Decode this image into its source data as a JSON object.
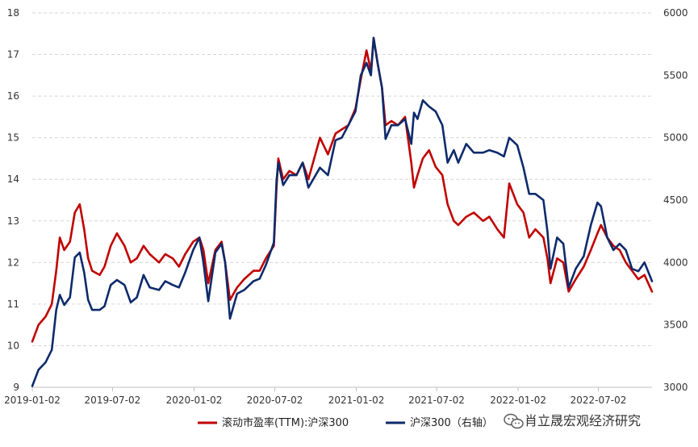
{
  "chart_data": {
    "type": "line",
    "title": "",
    "xlabel": "",
    "ylabel": "",
    "x_ticks": [
      "2019-01-02",
      "2019-07-02",
      "2020-01-02",
      "2020-07-02",
      "2021-01-02",
      "2021-07-02",
      "2022-01-02",
      "2022-07-02"
    ],
    "x_range": [
      "2019-01-02",
      "2022-10-31"
    ],
    "ylim_left": [
      9,
      18
    ],
    "left_ticks": [
      "9",
      "10",
      "11",
      "12",
      "13",
      "14",
      "15",
      "16",
      "17",
      "18"
    ],
    "ylim_right": [
      3000,
      6000
    ],
    "right_ticks": [
      "3000",
      "3500",
      "4000",
      "4500",
      "5000",
      "5500",
      "6000"
    ],
    "grid": "horizontal dashed",
    "legend_position": "bottom",
    "series": [
      {
        "name": "滚动市盈率(TTM):沪深300",
        "axis": "left",
        "color": "#c00000",
        "points": [
          [
            "2019-01-02",
            10.1
          ],
          [
            "2019-01-16",
            10.5
          ],
          [
            "2019-02-01",
            10.7
          ],
          [
            "2019-02-15",
            11.0
          ],
          [
            "2019-02-25",
            11.8
          ],
          [
            "2019-03-05",
            12.6
          ],
          [
            "2019-03-15",
            12.3
          ],
          [
            "2019-03-28",
            12.5
          ],
          [
            "2019-04-08",
            13.2
          ],
          [
            "2019-04-19",
            13.4
          ],
          [
            "2019-04-29",
            12.8
          ],
          [
            "2019-05-08",
            12.1
          ],
          [
            "2019-05-17",
            11.8
          ],
          [
            "2019-06-03",
            11.7
          ],
          [
            "2019-06-14",
            11.9
          ],
          [
            "2019-06-28",
            12.4
          ],
          [
            "2019-07-12",
            12.7
          ],
          [
            "2019-07-29",
            12.4
          ],
          [
            "2019-08-12",
            12.0
          ],
          [
            "2019-08-26",
            12.1
          ],
          [
            "2019-09-10",
            12.4
          ],
          [
            "2019-09-24",
            12.2
          ],
          [
            "2019-10-15",
            12.0
          ],
          [
            "2019-10-29",
            12.2
          ],
          [
            "2019-11-15",
            12.1
          ],
          [
            "2019-11-29",
            11.9
          ],
          [
            "2019-12-13",
            12.2
          ],
          [
            "2019-12-31",
            12.5
          ],
          [
            "2020-01-14",
            12.6
          ],
          [
            "2020-01-23",
            12.3
          ],
          [
            "2020-02-03",
            11.5
          ],
          [
            "2020-02-19",
            12.3
          ],
          [
            "2020-03-04",
            12.5
          ],
          [
            "2020-03-12",
            12.0
          ],
          [
            "2020-03-23",
            11.1
          ],
          [
            "2020-04-08",
            11.4
          ],
          [
            "2020-04-24",
            11.6
          ],
          [
            "2020-05-15",
            11.8
          ],
          [
            "2020-05-29",
            11.8
          ],
          [
            "2020-06-12",
            12.1
          ],
          [
            "2020-06-30",
            12.4
          ],
          [
            "2020-07-06",
            13.8
          ],
          [
            "2020-07-10",
            14.5
          ],
          [
            "2020-07-21",
            14.0
          ],
          [
            "2020-08-04",
            14.2
          ],
          [
            "2020-08-20",
            14.1
          ],
          [
            "2020-09-03",
            14.4
          ],
          [
            "2020-09-16",
            14.0
          ],
          [
            "2020-10-12",
            15.0
          ],
          [
            "2020-10-30",
            14.6
          ],
          [
            "2020-11-16",
            15.1
          ],
          [
            "2020-11-30",
            15.2
          ],
          [
            "2020-12-15",
            15.3
          ],
          [
            "2020-12-31",
            15.7
          ],
          [
            "2021-01-12",
            16.4
          ],
          [
            "2021-01-25",
            17.1
          ],
          [
            "2021-02-04",
            16.6
          ],
          [
            "2021-02-10",
            17.4
          ],
          [
            "2021-02-19",
            16.8
          ],
          [
            "2021-03-01",
            16.2
          ],
          [
            "2021-03-09",
            15.3
          ],
          [
            "2021-03-22",
            15.4
          ],
          [
            "2021-04-06",
            15.3
          ],
          [
            "2021-04-22",
            15.5
          ],
          [
            "2021-05-06",
            14.4
          ],
          [
            "2021-05-12",
            13.8
          ],
          [
            "2021-05-20",
            14.1
          ],
          [
            "2021-06-01",
            14.5
          ],
          [
            "2021-06-15",
            14.7
          ],
          [
            "2021-06-30",
            14.3
          ],
          [
            "2021-07-15",
            14.1
          ],
          [
            "2021-07-27",
            13.4
          ],
          [
            "2021-08-10",
            13.0
          ],
          [
            "2021-08-20",
            12.9
          ],
          [
            "2021-09-07",
            13.1
          ],
          [
            "2021-09-24",
            13.2
          ],
          [
            "2021-10-15",
            13.0
          ],
          [
            "2021-10-29",
            13.1
          ],
          [
            "2021-11-16",
            12.8
          ],
          [
            "2021-12-01",
            12.6
          ],
          [
            "2021-12-13",
            13.9
          ],
          [
            "2021-12-31",
            13.4
          ],
          [
            "2022-01-14",
            13.2
          ],
          [
            "2022-01-27",
            12.6
          ],
          [
            "2022-02-10",
            12.8
          ],
          [
            "2022-02-28",
            12.6
          ],
          [
            "2022-03-09",
            12.1
          ],
          [
            "2022-03-16",
            11.5
          ],
          [
            "2022-03-31",
            12.1
          ],
          [
            "2022-04-14",
            12.0
          ],
          [
            "2022-04-26",
            11.3
          ],
          [
            "2022-05-12",
            11.6
          ],
          [
            "2022-05-30",
            11.9
          ],
          [
            "2022-06-15",
            12.3
          ],
          [
            "2022-06-30",
            12.7
          ],
          [
            "2022-07-08",
            12.9
          ],
          [
            "2022-07-22",
            12.6
          ],
          [
            "2022-08-05",
            12.4
          ],
          [
            "2022-08-19",
            12.3
          ],
          [
            "2022-09-02",
            12.0
          ],
          [
            "2022-09-16",
            11.8
          ],
          [
            "2022-09-30",
            11.6
          ],
          [
            "2022-10-14",
            11.7
          ],
          [
            "2022-10-31",
            11.3
          ]
        ]
      },
      {
        "name": "沪深300（右轴）",
        "axis": "right",
        "color": "#0d2a6b",
        "points": [
          [
            "2019-01-02",
            3010
          ],
          [
            "2019-01-16",
            3140
          ],
          [
            "2019-02-01",
            3200
          ],
          [
            "2019-02-15",
            3300
          ],
          [
            "2019-02-25",
            3620
          ],
          [
            "2019-03-05",
            3740
          ],
          [
            "2019-03-15",
            3660
          ],
          [
            "2019-03-28",
            3720
          ],
          [
            "2019-04-08",
            4040
          ],
          [
            "2019-04-19",
            4080
          ],
          [
            "2019-04-29",
            3920
          ],
          [
            "2019-05-08",
            3700
          ],
          [
            "2019-05-17",
            3620
          ],
          [
            "2019-06-03",
            3620
          ],
          [
            "2019-06-14",
            3650
          ],
          [
            "2019-06-28",
            3820
          ],
          [
            "2019-07-12",
            3860
          ],
          [
            "2019-07-29",
            3820
          ],
          [
            "2019-08-12",
            3680
          ],
          [
            "2019-08-26",
            3720
          ],
          [
            "2019-09-10",
            3900
          ],
          [
            "2019-09-24",
            3800
          ],
          [
            "2019-10-15",
            3780
          ],
          [
            "2019-10-29",
            3850
          ],
          [
            "2019-11-15",
            3820
          ],
          [
            "2019-11-29",
            3800
          ],
          [
            "2019-12-13",
            3920
          ],
          [
            "2019-12-31",
            4100
          ],
          [
            "2020-01-14",
            4200
          ],
          [
            "2020-01-23",
            4000
          ],
          [
            "2020-02-03",
            3690
          ],
          [
            "2020-02-19",
            4080
          ],
          [
            "2020-03-04",
            4150
          ],
          [
            "2020-03-12",
            4000
          ],
          [
            "2020-03-23",
            3550
          ],
          [
            "2020-04-08",
            3750
          ],
          [
            "2020-04-24",
            3780
          ],
          [
            "2020-05-15",
            3850
          ],
          [
            "2020-05-29",
            3870
          ],
          [
            "2020-06-12",
            3980
          ],
          [
            "2020-06-30",
            4160
          ],
          [
            "2020-07-06",
            4660
          ],
          [
            "2020-07-10",
            4800
          ],
          [
            "2020-07-21",
            4620
          ],
          [
            "2020-08-04",
            4700
          ],
          [
            "2020-08-20",
            4700
          ],
          [
            "2020-09-03",
            4800
          ],
          [
            "2020-09-16",
            4600
          ],
          [
            "2020-10-12",
            4760
          ],
          [
            "2020-10-30",
            4700
          ],
          [
            "2020-11-16",
            4980
          ],
          [
            "2020-11-30",
            5000
          ],
          [
            "2020-12-15",
            5100
          ],
          [
            "2020-12-31",
            5210
          ],
          [
            "2021-01-12",
            5500
          ],
          [
            "2021-01-25",
            5600
          ],
          [
            "2021-02-04",
            5500
          ],
          [
            "2021-02-10",
            5800
          ],
          [
            "2021-02-19",
            5600
          ],
          [
            "2021-03-01",
            5400
          ],
          [
            "2021-03-09",
            4990
          ],
          [
            "2021-03-22",
            5100
          ],
          [
            "2021-04-06",
            5100
          ],
          [
            "2021-04-22",
            5150
          ],
          [
            "2021-05-06",
            4950
          ],
          [
            "2021-05-12",
            5200
          ],
          [
            "2021-05-20",
            5150
          ],
          [
            "2021-06-01",
            5300
          ],
          [
            "2021-06-15",
            5250
          ],
          [
            "2021-06-30",
            5210
          ],
          [
            "2021-07-15",
            5100
          ],
          [
            "2021-07-27",
            4800
          ],
          [
            "2021-08-10",
            4900
          ],
          [
            "2021-08-20",
            4800
          ],
          [
            "2021-09-07",
            4950
          ],
          [
            "2021-09-24",
            4880
          ],
          [
            "2021-10-15",
            4880
          ],
          [
            "2021-10-29",
            4900
          ],
          [
            "2021-11-16",
            4880
          ],
          [
            "2021-12-01",
            4850
          ],
          [
            "2021-12-13",
            5000
          ],
          [
            "2021-12-31",
            4940
          ],
          [
            "2022-01-14",
            4760
          ],
          [
            "2022-01-27",
            4550
          ],
          [
            "2022-02-10",
            4550
          ],
          [
            "2022-02-28",
            4500
          ],
          [
            "2022-03-09",
            4250
          ],
          [
            "2022-03-16",
            3950
          ],
          [
            "2022-03-31",
            4200
          ],
          [
            "2022-04-14",
            4150
          ],
          [
            "2022-04-26",
            3800
          ],
          [
            "2022-05-12",
            3950
          ],
          [
            "2022-05-30",
            4050
          ],
          [
            "2022-06-15",
            4300
          ],
          [
            "2022-06-30",
            4480
          ],
          [
            "2022-07-08",
            4450
          ],
          [
            "2022-07-22",
            4200
          ],
          [
            "2022-08-05",
            4100
          ],
          [
            "2022-08-19",
            4150
          ],
          [
            "2022-09-02",
            4100
          ],
          [
            "2022-09-16",
            3950
          ],
          [
            "2022-09-30",
            3930
          ],
          [
            "2022-10-14",
            4000
          ],
          [
            "2022-10-31",
            3850
          ]
        ]
      }
    ]
  },
  "watermark": {
    "text": "肖立晟宏观经济研究",
    "icon": "wechat-icon"
  }
}
